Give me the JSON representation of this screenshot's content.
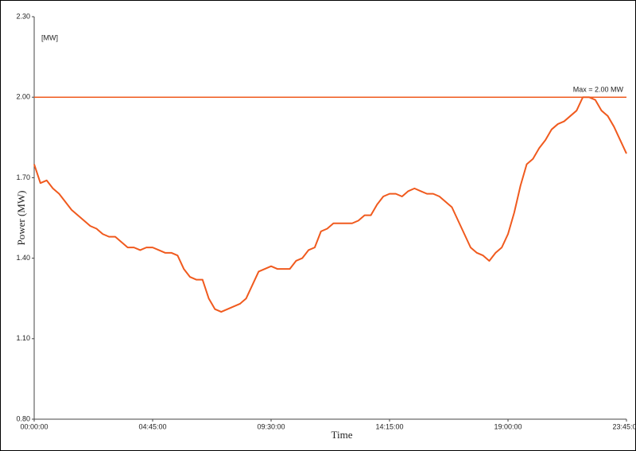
{
  "chart_data": {
    "type": "line",
    "unit_label": "[MW]",
    "ylabel": "Power (MW)",
    "xlabel": "Time",
    "categories": [
      "00:00:00",
      null,
      null,
      null,
      null,
      null,
      null,
      null,
      null,
      null,
      null,
      null,
      null,
      null,
      null,
      null,
      null,
      null,
      null,
      "04:45:00",
      null,
      null,
      null,
      null,
      null,
      null,
      null,
      null,
      null,
      null,
      null,
      null,
      null,
      null,
      null,
      null,
      null,
      null,
      "09:30:00",
      null,
      null,
      null,
      null,
      null,
      null,
      null,
      null,
      null,
      null,
      null,
      null,
      null,
      null,
      null,
      null,
      null,
      null,
      "14:15:00",
      null,
      null,
      null,
      null,
      null,
      null,
      null,
      null,
      null,
      null,
      null,
      null,
      null,
      null,
      null,
      null,
      null,
      null,
      "19:00:00",
      null,
      null,
      null,
      null,
      null,
      null,
      null,
      null,
      null,
      null,
      null,
      null,
      null,
      null,
      null,
      null,
      null,
      null,
      "23:45:00"
    ],
    "series": [
      {
        "name": "Power",
        "color": "#f05a1e",
        "values": [
          1.75,
          1.68,
          1.69,
          1.66,
          1.64,
          1.61,
          1.58,
          1.56,
          1.54,
          1.52,
          1.51,
          1.49,
          1.48,
          1.48,
          1.46,
          1.44,
          1.44,
          1.43,
          1.44,
          1.44,
          1.43,
          1.42,
          1.42,
          1.41,
          1.36,
          1.33,
          1.32,
          1.32,
          1.25,
          1.21,
          1.2,
          1.21,
          1.22,
          1.23,
          1.25,
          1.3,
          1.35,
          1.36,
          1.37,
          1.36,
          1.36,
          1.36,
          1.39,
          1.4,
          1.43,
          1.44,
          1.5,
          1.51,
          1.53,
          1.53,
          1.53,
          1.53,
          1.54,
          1.56,
          1.56,
          1.6,
          1.63,
          1.64,
          1.64,
          1.63,
          1.65,
          1.66,
          1.65,
          1.64,
          1.64,
          1.63,
          1.61,
          1.59,
          1.54,
          1.49,
          1.44,
          1.42,
          1.41,
          1.39,
          1.42,
          1.44,
          1.49,
          1.57,
          1.67,
          1.75,
          1.77,
          1.81,
          1.84,
          1.88,
          1.9,
          1.91,
          1.93,
          1.95,
          2.0,
          2.0,
          1.99,
          1.95,
          1.93,
          1.89,
          1.84,
          1.79
        ]
      }
    ],
    "max_line": {
      "value": 2.0,
      "label": "Max = 2.00 MW",
      "color": "#f05a1e"
    },
    "ylim": [
      0.8,
      2.3
    ],
    "yticks": [
      {
        "value": 0.8,
        "label": "0.80"
      },
      {
        "value": 1.1,
        "label": "1.10"
      },
      {
        "value": 1.4,
        "label": "1.40"
      },
      {
        "value": 1.7,
        "label": "1.70"
      },
      {
        "value": 2.0,
        "label": "2.00"
      },
      {
        "value": 2.3,
        "label": "2.30"
      }
    ],
    "grid": false
  }
}
